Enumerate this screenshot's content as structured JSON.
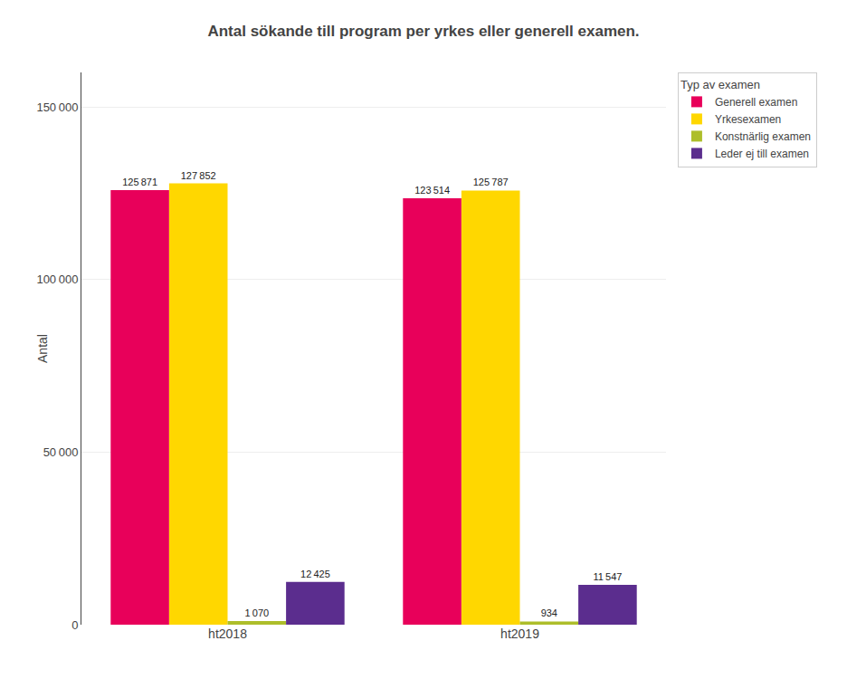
{
  "chart_data": {
    "type": "bar",
    "title": "Antal sökande till program per yrkes eller generell examen.",
    "ylabel": "Antal",
    "categories": [
      "ht2018",
      "ht2019"
    ],
    "series": [
      {
        "name": "Generell examen",
        "color": "#E8005A",
        "values": [
          125871,
          123514
        ],
        "value_labels": [
          "125 871",
          "123 514"
        ]
      },
      {
        "name": "Yrkesexamen",
        "color": "#FFD700",
        "values": [
          127852,
          125787
        ],
        "value_labels": [
          "127 852",
          "125 787"
        ]
      },
      {
        "name": "Konstnärlig examen",
        "color": "#ADBE2A",
        "values": [
          1070,
          934
        ],
        "value_labels": [
          "1 070",
          "934"
        ]
      },
      {
        "name": "Leder ej till examen",
        "color": "#5B2D8E",
        "values": [
          12425,
          11547
        ],
        "value_labels": [
          "12 425",
          "11 547"
        ]
      }
    ],
    "ylim": [
      0,
      160000
    ],
    "yticks": [
      0,
      {
        "value": 50000,
        "label": "50 000"
      },
      {
        "value": 100000,
        "label": "100 000"
      },
      {
        "value": 150000,
        "label": "150 000"
      }
    ],
    "grid": true,
    "legend": "upper right",
    "legend_title": "Typ av examen",
    "data_labels": true
  }
}
